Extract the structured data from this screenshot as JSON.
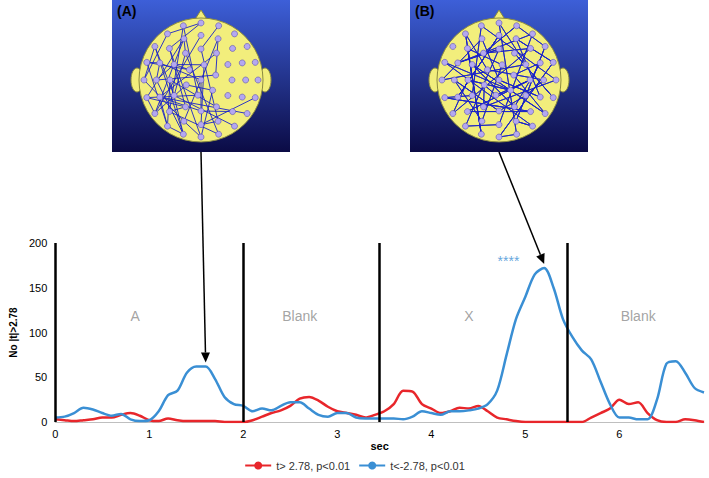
{
  "chart_data": {
    "type": "line",
    "x_label": "sec",
    "y_label": "No |t|>2.78",
    "x": [
      0,
      0.1,
      0.2,
      0.3,
      0.4,
      0.5,
      0.6,
      0.7,
      0.8,
      0.9,
      1,
      1.1,
      1.2,
      1.3,
      1.4,
      1.5,
      1.6,
      1.7,
      1.8,
      1.9,
      2,
      2.1,
      2.2,
      2.3,
      2.4,
      2.5,
      2.6,
      2.7,
      2.8,
      2.9,
      3,
      3.1,
      3.2,
      3.3,
      3.4,
      3.5,
      3.6,
      3.7,
      3.8,
      3.9,
      4,
      4.1,
      4.2,
      4.3,
      4.4,
      4.5,
      4.6,
      4.7,
      4.8,
      4.9,
      5,
      5.1,
      5.2,
      5.3,
      5.4,
      5.5,
      5.6,
      5.7,
      5.8,
      5.9,
      6,
      6.1,
      6.2,
      6.3,
      6.4,
      6.5,
      6.6,
      6.7,
      6.8,
      6.9
    ],
    "series": [
      {
        "name": "t> 2.78, p<0.01",
        "color": "#e8262b",
        "values": [
          3,
          2,
          1,
          2,
          3,
          5,
          5,
          8,
          10,
          7,
          2,
          1,
          4,
          2,
          1,
          1,
          1,
          1,
          0,
          0,
          0,
          2,
          6,
          10,
          13,
          18,
          26,
          28,
          24,
          17,
          12,
          10,
          8,
          5,
          8,
          12,
          20,
          35,
          34,
          20,
          15,
          10,
          12,
          16,
          15,
          18,
          12,
          5,
          3,
          1,
          0,
          0,
          0,
          0,
          0,
          0,
          0,
          5,
          10,
          15,
          25,
          20,
          22,
          10,
          2,
          0,
          0,
          3,
          2,
          0
        ]
      },
      {
        "name": "t<-2.78, p<0.01",
        "color": "#3a8fd4",
        "values": [
          5,
          6,
          10,
          16,
          14,
          10,
          7,
          9,
          3,
          1,
          2,
          12,
          30,
          35,
          55,
          62,
          62,
          48,
          28,
          20,
          18,
          12,
          15,
          13,
          18,
          22,
          22,
          15,
          8,
          6,
          10,
          10,
          5,
          4,
          4,
          4,
          4,
          3,
          6,
          12,
          10,
          8,
          12,
          12,
          13,
          15,
          20,
          35,
          75,
          115,
          140,
          165,
          172,
          150,
          115,
          95,
          80,
          70,
          45,
          20,
          5,
          5,
          3,
          3,
          25,
          65,
          68,
          55,
          38,
          33
        ]
      }
    ],
    "xlim": [
      0,
      6.9
    ],
    "xticks": [
      0,
      1,
      2,
      3,
      4,
      5,
      6
    ],
    "ylim": [
      0,
      200
    ],
    "yticks": [
      0,
      50,
      100,
      150,
      200
    ],
    "grid": false,
    "legend": "bottom",
    "dividers": [
      0,
      2,
      3.45,
      5.45
    ],
    "annotations": [
      {
        "text": "A",
        "x": 0.85,
        "y": 118,
        "color": "#8c8c8c"
      },
      {
        "text": "Blank",
        "x": 2.6,
        "y": 118,
        "color": "#8c8c8c"
      },
      {
        "text": "X",
        "x": 4.4,
        "y": 118,
        "color": "#8c8c8c"
      },
      {
        "text": "Blank",
        "x": 6.2,
        "y": 118,
        "color": "#8c8c8c"
      },
      {
        "text": "****",
        "x": 4.82,
        "y": 180,
        "color": "#3a8fd4"
      }
    ],
    "insets": [
      {
        "label": "(A)",
        "x": 1.6,
        "y": 62
      },
      {
        "label": "(B)",
        "x": 5.2,
        "y": 172
      }
    ]
  }
}
